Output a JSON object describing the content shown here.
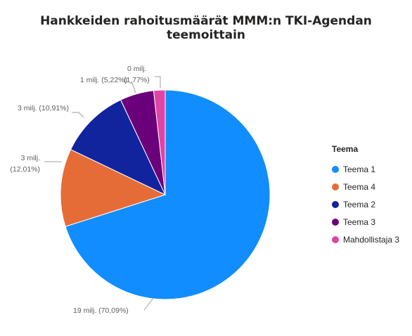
{
  "chart_data": {
    "type": "pie",
    "title": "Hankkeiden rahoitusmäärät MMM:n TKI-Agendan teemoittain",
    "legend_title": "Teema",
    "legend_position": "right",
    "slices": [
      {
        "name": "Teema 1",
        "value": 19,
        "percent": 70.09,
        "label": "19 milj. (70,09%)",
        "color": "#118DFF"
      },
      {
        "name": "Teema 4",
        "value": 3,
        "percent": 12.01,
        "label": "3 milj. (12,01%)",
        "color": "#E66C37"
      },
      {
        "name": "Teema 2",
        "value": 3,
        "percent": 10.91,
        "label": "3 milj. (10,91%)",
        "color": "#12239E"
      },
      {
        "name": "Teema 3",
        "value": 1,
        "percent": 5.22,
        "label": "1 milj. (5,22%)",
        "color": "#6B007B"
      },
      {
        "name": "Mahdollistaja 3",
        "value": 0,
        "percent": 1.77,
        "label": "0 milj. (1,77%)",
        "color": "#E044A7"
      }
    ]
  }
}
